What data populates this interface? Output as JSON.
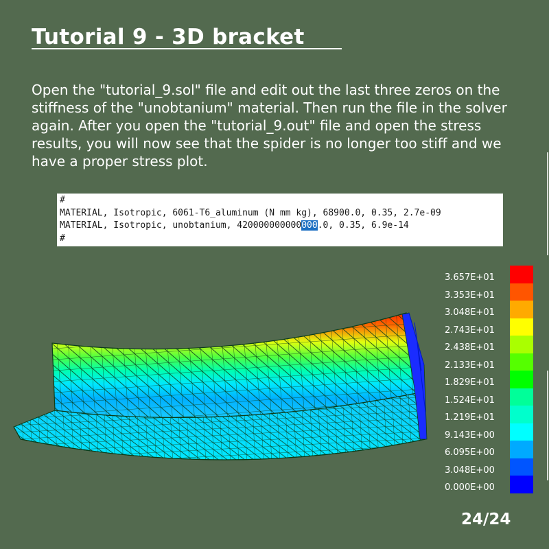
{
  "slide": {
    "title": "Tutorial 9 - 3D bracket",
    "paragraph": "Open the \"tutorial_9.sol\" file and edit out the last three zeros on the stiffness of the \"unobtanium\" material. Then run the file in the solver again. After you open the \"tutorial_9.out\" file and open the stress results, you will now see that the spider is no longer too stiff and we have a proper stress plot.",
    "page_number": "24/24"
  },
  "code": {
    "line1": "#",
    "line2": "MATERIAL, Isotropic, 6061-T6_aluminum (N mm kg), 68900.0, 0.35, 2.7e-09",
    "line3_before": "MATERIAL, Isotropic, unobtanium, 420000000000",
    "line3_highlight": "000",
    "line3_after": ".0, 0.35, 6.9e-14",
    "line4": "#"
  },
  "legend": {
    "labels": [
      "3.657E+01",
      "3.353E+01",
      "3.048E+01",
      "2.743E+01",
      "2.438E+01",
      "2.133E+01",
      "1.829E+01",
      "1.524E+01",
      "1.219E+01",
      "9.143E+00",
      "6.095E+00",
      "3.048E+00",
      "0.000E+00"
    ],
    "colors": [
      "#ff0000",
      "#ff5500",
      "#ffaa00",
      "#ffff00",
      "#aaff00",
      "#55ff00",
      "#00ff00",
      "#00ff99",
      "#00ffcc",
      "#00ffff",
      "#00aaff",
      "#0055ff",
      "#0000ff"
    ]
  }
}
